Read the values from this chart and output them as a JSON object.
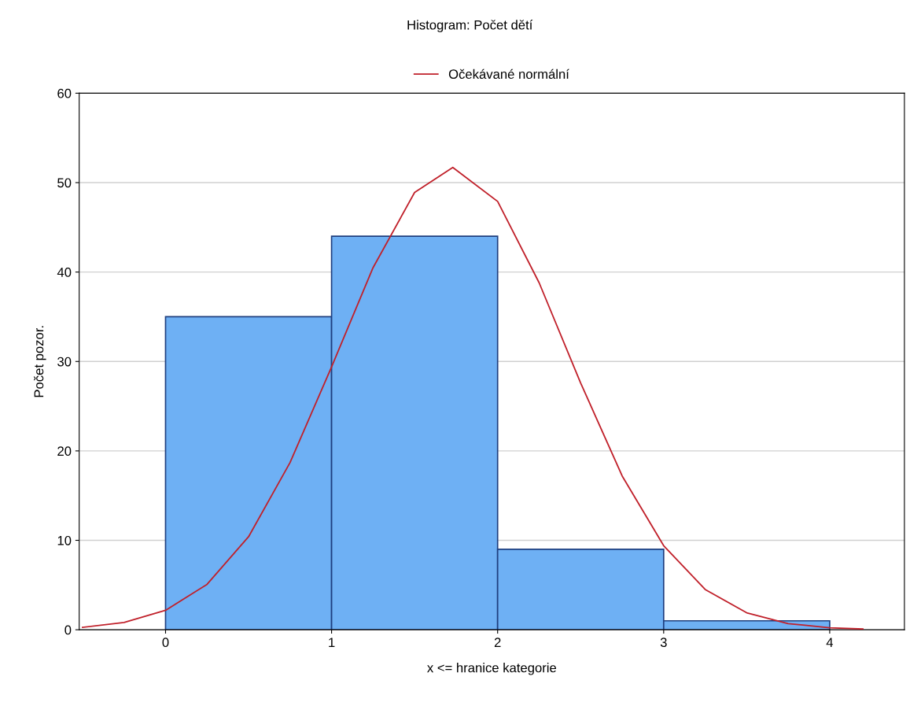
{
  "chart_data": {
    "type": "histogram",
    "title": "Histogram: Počet dětí",
    "xlabel": "x <= hranice kategorie",
    "ylabel": "Počet pozor.",
    "bins": [
      0,
      1,
      2,
      3,
      4
    ],
    "values": [
      35,
      44,
      9,
      1
    ],
    "color": "#6eb0f4",
    "series": [
      {
        "type": "line",
        "name": "Očekávané normální",
        "color": "#c0202a",
        "x": [
          -0.5,
          -0.25,
          0,
          0.25,
          0.5,
          0.75,
          1,
          1.25,
          1.5,
          1.73,
          2,
          2.25,
          2.5,
          2.75,
          3,
          3.25,
          3.5,
          3.75,
          4,
          4.2
        ],
        "values": [
          0.27,
          0.81,
          2.17,
          5.08,
          10.4,
          18.7,
          29.4,
          40.5,
          48.9,
          51.7,
          47.9,
          38.8,
          27.6,
          17.2,
          9.4,
          4.5,
          1.9,
          0.69,
          0.22,
          0.08
        ]
      }
    ],
    "xlim": [
      -0.52,
      4.45
    ],
    "xticks": [
      0,
      1,
      2,
      3,
      4
    ],
    "ylim": [
      0,
      60
    ],
    "yticks": [
      0,
      10,
      20,
      30,
      40,
      50,
      60
    ],
    "grid": "y",
    "legend": "top"
  }
}
